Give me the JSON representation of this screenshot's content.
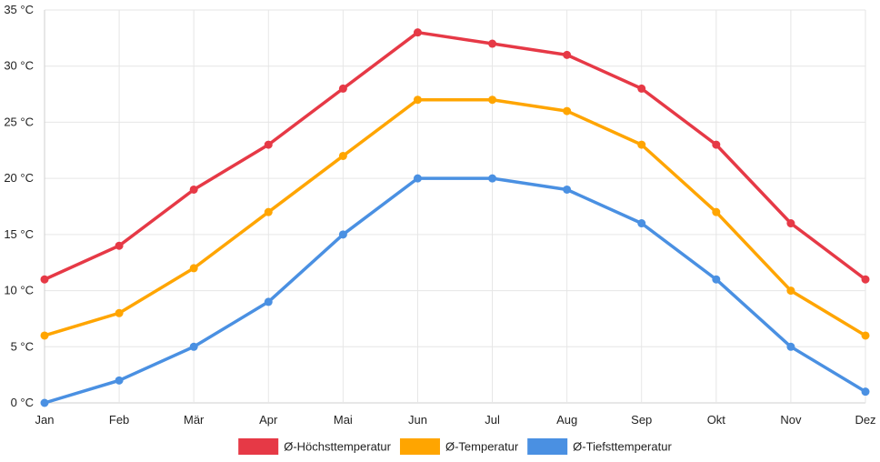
{
  "chart_data": {
    "type": "line",
    "categories": [
      "Jan",
      "Feb",
      "Mär",
      "Apr",
      "Mai",
      "Jun",
      "Jul",
      "Aug",
      "Sep",
      "Okt",
      "Nov",
      "Dez"
    ],
    "y_ticks": [
      "0 °C",
      "5 °C",
      "10 °C",
      "15 °C",
      "20 °C",
      "25 °C",
      "30 °C",
      "35 °C"
    ],
    "ylim": [
      0,
      35
    ],
    "grid": true,
    "legend_position": "bottom",
    "series": [
      {
        "name": "Ø-Höchsttemperatur",
        "color": "#e63946",
        "values": [
          11,
          14,
          19,
          23,
          28,
          33,
          32,
          31,
          28,
          23,
          16,
          11
        ]
      },
      {
        "name": "Ø-Temperatur",
        "color": "#ffa500",
        "values": [
          6,
          8,
          12,
          17,
          22,
          27,
          27,
          26,
          23,
          17,
          10,
          6
        ]
      },
      {
        "name": "Ø-Tiefsttemperatur",
        "color": "#4a90e2",
        "values": [
          0,
          2,
          5,
          9,
          15,
          20,
          20,
          19,
          16,
          11,
          5,
          1
        ]
      }
    ]
  }
}
